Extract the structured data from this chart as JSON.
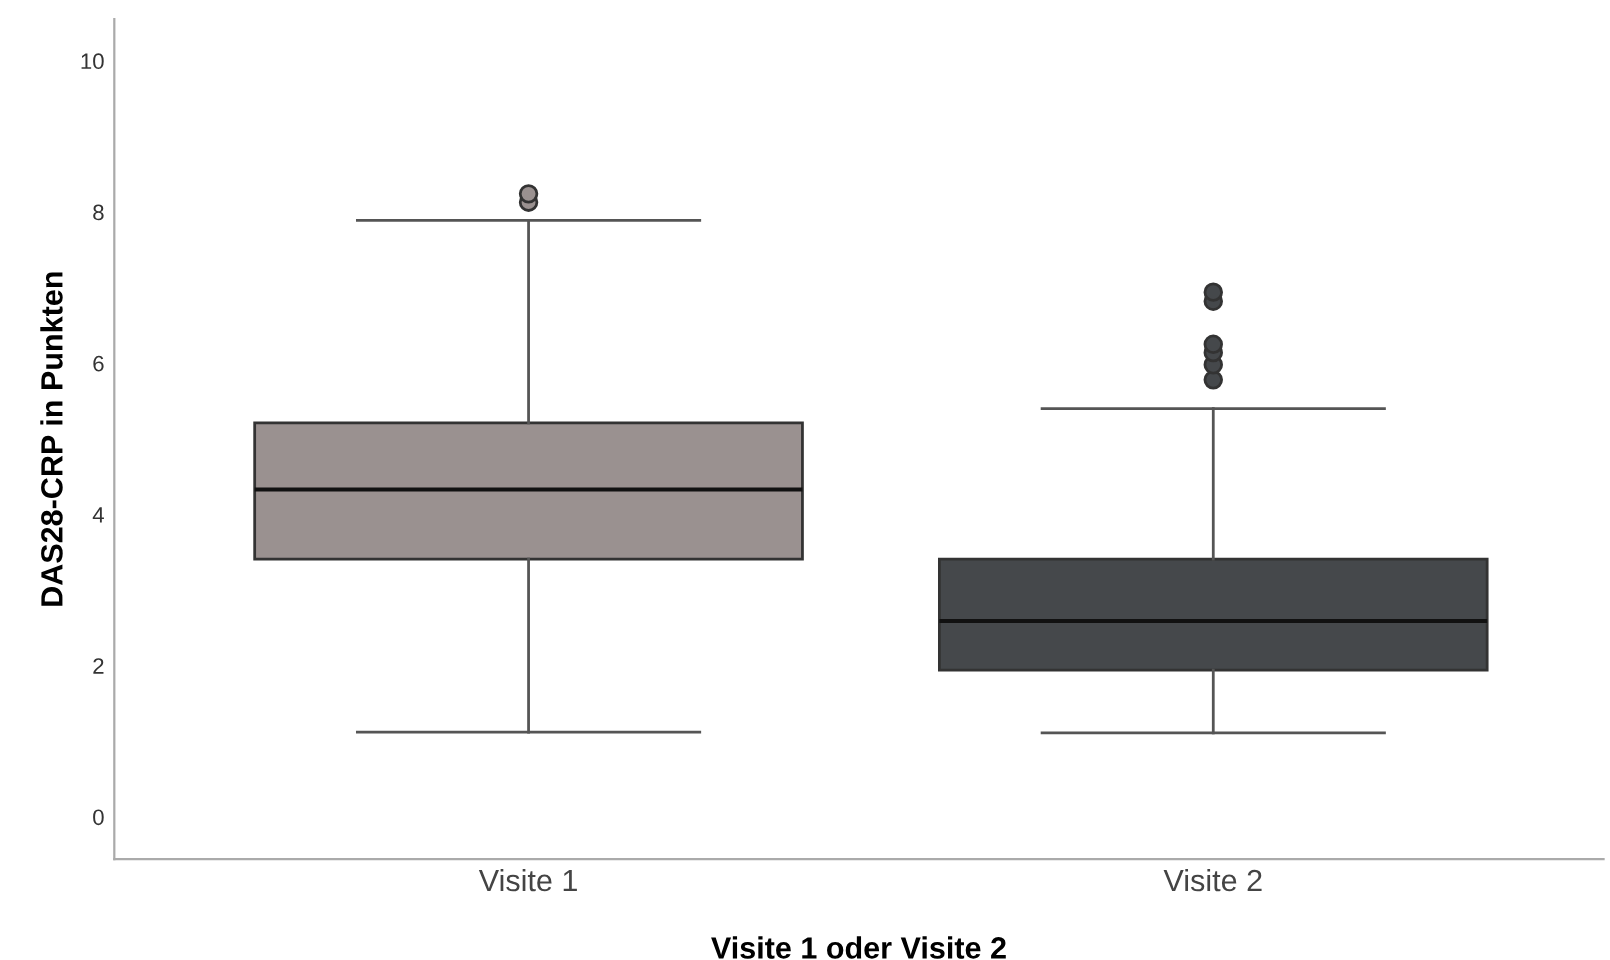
{
  "chart_data": {
    "type": "box",
    "xlabel": "Visite 1 oder Visite 2",
    "ylabel": "DAS28-CRP in Punkten",
    "categories": [
      "Visite 1",
      "Visite 2"
    ],
    "colors": [
      "#9a9190",
      "#45484b"
    ],
    "boxes": [
      {
        "low": 1.12,
        "q1": 3.41,
        "median": 4.33,
        "q3": 5.21,
        "high": 7.89,
        "outliers": [
          8.13,
          8.24
        ]
      },
      {
        "low": 1.11,
        "q1": 1.94,
        "median": 2.59,
        "q3": 3.41,
        "high": 5.4,
        "outliers": [
          5.78,
          5.98,
          6.14,
          6.25,
          6.82,
          6.94
        ]
      }
    ],
    "ylim": [
      -0.56,
      10.55
    ],
    "yticks": [
      0,
      2,
      4,
      6,
      8,
      10
    ],
    "grid": false,
    "legend": false
  }
}
